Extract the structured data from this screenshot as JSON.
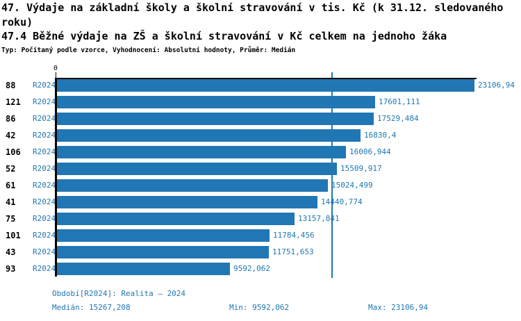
{
  "header": {
    "title_line1": "47. Výdaje na základní školy a školní stravování v tis. Kč (k 31.12. sledovaného roku)",
    "title_line2": "47.4 Běžné výdaje na ZŠ a školní stravování v Kč celkem na jednoho žáka",
    "meta_line": "Typ: Počítaný podle vzorce, Vyhodnocení: Absolutní hodnoty, Průměr: Medián"
  },
  "chart_data": {
    "type": "bar",
    "orientation": "horizontal",
    "x_axis": {
      "origin_tick_label": "0",
      "min": 0,
      "max_bar_value": 23106.94
    },
    "categories": [
      "88",
      "121",
      "86",
      "42",
      "106",
      "52",
      "61",
      "41",
      "75",
      "101",
      "43",
      "93"
    ],
    "series": [
      {
        "name": "R2024",
        "values": [
          23106.94,
          17601.111,
          17529.484,
          16830.4,
          16006.944,
          15509.917,
          15024.499,
          14440.774,
          13157.841,
          11784.456,
          11751.653,
          9592.062
        ]
      }
    ],
    "rows": [
      {
        "row_label": "88",
        "period_label": "R2024",
        "value": 23106.94,
        "value_label": "23106,94"
      },
      {
        "row_label": "121",
        "period_label": "R2024",
        "value": 17601.111,
        "value_label": "17601,111"
      },
      {
        "row_label": "86",
        "period_label": "R2024",
        "value": 17529.484,
        "value_label": "17529,484"
      },
      {
        "row_label": "42",
        "period_label": "R2024",
        "value": 16830.4,
        "value_label": "16830,4"
      },
      {
        "row_label": "106",
        "period_label": "R2024",
        "value": 16006.944,
        "value_label": "16006,944"
      },
      {
        "row_label": "52",
        "period_label": "R2024",
        "value": 15509.917,
        "value_label": "15509,917"
      },
      {
        "row_label": "61",
        "period_label": "R2024",
        "value": 15024.499,
        "value_label": "15024,499"
      },
      {
        "row_label": "41",
        "period_label": "R2024",
        "value": 14440.774,
        "value_label": "14440,774"
      },
      {
        "row_label": "75",
        "period_label": "R2024",
        "value": 13157.841,
        "value_label": "13157,841"
      },
      {
        "row_label": "101",
        "period_label": "R2024",
        "value": 11784.456,
        "value_label": "11784,456"
      },
      {
        "row_label": "43",
        "period_label": "R2024",
        "value": 11751.653,
        "value_label": "11751,653"
      },
      {
        "row_label": "93",
        "period_label": "R2024",
        "value": 9592.062,
        "value_label": "9592,062"
      }
    ],
    "median_line_value": 15267.208,
    "colors": {
      "bar": "#2077b4",
      "blue_text": "#2077b4",
      "axis": "#000000"
    },
    "legend_position": "none",
    "grid": false
  },
  "footer": {
    "period_line": "Období[R2024]: Realita – 2024",
    "median_label": "Medián: 15267,208",
    "min_label": "Min: 9592,062",
    "max_label": "Max: 23106,94"
  }
}
